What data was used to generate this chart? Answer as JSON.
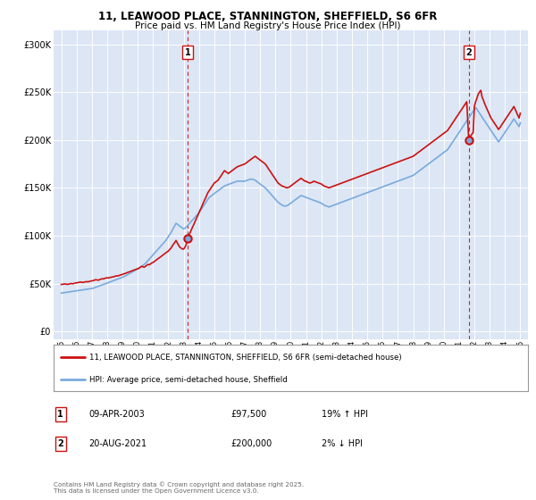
{
  "title_line1": "11, LEAWOOD PLACE, STANNINGTON, SHEFFIELD, S6 6FR",
  "title_line2": "Price paid vs. HM Land Registry's House Price Index (HPI)",
  "plot_bg_color": "#dce6f5",
  "red_color": "#cc1111",
  "blue_color": "#7aaadd",
  "dashed_color": "#cc1111",
  "marker1_x": 2003.27,
  "marker1_y": 97500,
  "marker2_x": 2021.63,
  "marker2_y": 200000,
  "annotation1": [
    "1",
    "09-APR-2003",
    "£97,500",
    "19% ↑ HPI"
  ],
  "annotation2": [
    "2",
    "20-AUG-2021",
    "£200,000",
    "2% ↓ HPI"
  ],
  "legend_line1": "11, LEAWOOD PLACE, STANNINGTON, SHEFFIELD, S6 6FR (semi-detached house)",
  "legend_line2": "HPI: Average price, semi-detached house, Sheffield",
  "footer": "Contains HM Land Registry data © Crown copyright and database right 2025.\nThis data is licensed under the Open Government Licence v3.0.",
  "yticks": [
    0,
    50000,
    100000,
    150000,
    200000,
    250000,
    300000
  ],
  "ytick_labels": [
    "£0",
    "£50K",
    "£100K",
    "£150K",
    "£200K",
    "£250K",
    "£300K"
  ],
  "xmin": 1994.5,
  "xmax": 2025.5,
  "ymin": -8000,
  "ymax": 315000,
  "red_data_x": [
    1995.0,
    1995.08,
    1995.17,
    1995.25,
    1995.33,
    1995.42,
    1995.5,
    1995.58,
    1995.67,
    1995.75,
    1995.83,
    1995.92,
    1996.0,
    1996.08,
    1996.17,
    1996.25,
    1996.33,
    1996.42,
    1996.5,
    1996.58,
    1996.67,
    1996.75,
    1996.83,
    1996.92,
    1997.0,
    1997.08,
    1997.17,
    1997.25,
    1997.33,
    1997.42,
    1997.5,
    1997.58,
    1997.67,
    1997.75,
    1997.83,
    1997.92,
    1998.0,
    1998.08,
    1998.17,
    1998.25,
    1998.33,
    1998.42,
    1998.5,
    1998.58,
    1998.67,
    1998.75,
    1998.83,
    1998.92,
    1999.0,
    1999.08,
    1999.17,
    1999.25,
    1999.33,
    1999.42,
    1999.5,
    1999.58,
    1999.67,
    1999.75,
    1999.83,
    1999.92,
    2000.0,
    2000.08,
    2000.17,
    2000.25,
    2000.33,
    2000.42,
    2000.5,
    2000.58,
    2000.67,
    2000.75,
    2000.83,
    2000.92,
    2001.0,
    2001.08,
    2001.17,
    2001.25,
    2001.33,
    2001.42,
    2001.5,
    2001.58,
    2001.67,
    2001.75,
    2001.83,
    2001.92,
    2002.0,
    2002.08,
    2002.17,
    2002.25,
    2002.33,
    2002.42,
    2002.5,
    2002.58,
    2002.67,
    2002.75,
    2002.83,
    2002.92,
    2003.0,
    2003.08,
    2003.17,
    2003.27,
    2003.33,
    2003.42,
    2003.5,
    2003.58,
    2003.67,
    2003.75,
    2003.83,
    2003.92,
    2004.0,
    2004.08,
    2004.17,
    2004.25,
    2004.33,
    2004.42,
    2004.5,
    2004.58,
    2004.67,
    2004.75,
    2004.83,
    2004.92,
    2005.0,
    2005.08,
    2005.17,
    2005.25,
    2005.33,
    2005.42,
    2005.5,
    2005.58,
    2005.67,
    2005.75,
    2005.83,
    2005.92,
    2006.0,
    2006.08,
    2006.17,
    2006.25,
    2006.33,
    2006.42,
    2006.5,
    2006.58,
    2006.67,
    2006.75,
    2006.83,
    2006.92,
    2007.0,
    2007.08,
    2007.17,
    2007.25,
    2007.33,
    2007.42,
    2007.5,
    2007.58,
    2007.67,
    2007.75,
    2007.83,
    2007.92,
    2008.0,
    2008.08,
    2008.17,
    2008.25,
    2008.33,
    2008.42,
    2008.5,
    2008.58,
    2008.67,
    2008.75,
    2008.83,
    2008.92,
    2009.0,
    2009.08,
    2009.17,
    2009.25,
    2009.33,
    2009.42,
    2009.5,
    2009.58,
    2009.67,
    2009.75,
    2009.83,
    2009.92,
    2010.0,
    2010.08,
    2010.17,
    2010.25,
    2010.33,
    2010.42,
    2010.5,
    2010.58,
    2010.67,
    2010.75,
    2010.83,
    2010.92,
    2011.0,
    2011.08,
    2011.17,
    2011.25,
    2011.33,
    2011.42,
    2011.5,
    2011.58,
    2011.67,
    2011.75,
    2011.83,
    2011.92,
    2012.0,
    2012.08,
    2012.17,
    2012.25,
    2012.33,
    2012.42,
    2012.5,
    2012.58,
    2012.67,
    2012.75,
    2012.83,
    2012.92,
    2013.0,
    2013.08,
    2013.17,
    2013.25,
    2013.33,
    2013.42,
    2013.5,
    2013.58,
    2013.67,
    2013.75,
    2013.83,
    2013.92,
    2014.0,
    2014.08,
    2014.17,
    2014.25,
    2014.33,
    2014.42,
    2014.5,
    2014.58,
    2014.67,
    2014.75,
    2014.83,
    2014.92,
    2015.0,
    2015.08,
    2015.17,
    2015.25,
    2015.33,
    2015.42,
    2015.5,
    2015.58,
    2015.67,
    2015.75,
    2015.83,
    2015.92,
    2016.0,
    2016.08,
    2016.17,
    2016.25,
    2016.33,
    2016.42,
    2016.5,
    2016.58,
    2016.67,
    2016.75,
    2016.83,
    2016.92,
    2017.0,
    2017.08,
    2017.17,
    2017.25,
    2017.33,
    2017.42,
    2017.5,
    2017.58,
    2017.67,
    2017.75,
    2017.83,
    2017.92,
    2018.0,
    2018.08,
    2018.17,
    2018.25,
    2018.33,
    2018.42,
    2018.5,
    2018.58,
    2018.67,
    2018.75,
    2018.83,
    2018.92,
    2019.0,
    2019.08,
    2019.17,
    2019.25,
    2019.33,
    2019.42,
    2019.5,
    2019.58,
    2019.67,
    2019.75,
    2019.83,
    2019.92,
    2020.0,
    2020.08,
    2020.17,
    2020.25,
    2020.33,
    2020.42,
    2020.5,
    2020.58,
    2020.67,
    2020.75,
    2020.83,
    2020.92,
    2021.0,
    2021.08,
    2021.17,
    2021.25,
    2021.33,
    2021.42,
    2021.5,
    2021.63,
    2021.67,
    2021.75,
    2021.83,
    2021.92,
    2022.0,
    2022.08,
    2022.17,
    2022.25,
    2022.33,
    2022.42,
    2022.5,
    2022.58,
    2022.67,
    2022.75,
    2022.83,
    2022.92,
    2023.0,
    2023.08,
    2023.17,
    2023.25,
    2023.33,
    2023.42,
    2023.5,
    2023.58,
    2023.67,
    2023.75,
    2023.83,
    2023.92,
    2024.0,
    2024.08,
    2024.17,
    2024.25,
    2024.33,
    2024.42,
    2024.5,
    2024.58,
    2024.67,
    2024.75,
    2024.83,
    2024.92,
    2025.0
  ],
  "red_data_y": [
    49000,
    49200,
    49400,
    49600,
    49300,
    49100,
    49500,
    49800,
    50000,
    49700,
    50200,
    50500,
    50800,
    51000,
    51200,
    51500,
    51300,
    51100,
    51500,
    51800,
    52000,
    51700,
    52200,
    52500,
    52800,
    53000,
    53500,
    54000,
    53800,
    53500,
    54000,
    54500,
    55000,
    54800,
    55300,
    55800,
    56000,
    55800,
    56200,
    56500,
    56800,
    57000,
    57500,
    58000,
    57800,
    58200,
    58700,
    59200,
    59500,
    60000,
    60500,
    61000,
    61500,
    62000,
    62500,
    63000,
    63500,
    64000,
    64500,
    65000,
    65500,
    66000,
    67000,
    68000,
    67500,
    67000,
    68000,
    69000,
    70000,
    69500,
    70500,
    71500,
    72000,
    73000,
    74000,
    75000,
    76000,
    77000,
    78000,
    79000,
    80000,
    81000,
    82000,
    83000,
    84000,
    85500,
    87000,
    89000,
    91000,
    93000,
    95000,
    92500,
    90000,
    88000,
    87000,
    86000,
    86000,
    88000,
    91000,
    97500,
    100000,
    103000,
    106000,
    109000,
    112000,
    115000,
    118000,
    121000,
    124000,
    127000,
    130000,
    133000,
    136000,
    139000,
    142000,
    145000,
    147000,
    149000,
    151000,
    153000,
    155000,
    156000,
    157000,
    158000,
    160000,
    162000,
    164000,
    166000,
    168000,
    167000,
    166000,
    165000,
    166000,
    167000,
    168000,
    169000,
    170000,
    171000,
    172000,
    172500,
    173000,
    173500,
    174000,
    174500,
    175000,
    176000,
    177000,
    178000,
    179000,
    180000,
    181000,
    182000,
    183000,
    182000,
    181000,
    180000,
    179000,
    178000,
    177000,
    176000,
    175000,
    173000,
    171000,
    169000,
    167000,
    165000,
    163000,
    161000,
    159000,
    157000,
    155000,
    154000,
    153000,
    152000,
    151500,
    151000,
    150500,
    150000,
    150500,
    151000,
    152000,
    153000,
    154000,
    155000,
    156000,
    157000,
    158000,
    159000,
    160000,
    159000,
    158000,
    157000,
    157000,
    156000,
    155500,
    155000,
    155500,
    156000,
    157000,
    156500,
    156000,
    155500,
    155000,
    154500,
    154000,
    153000,
    152000,
    151500,
    151000,
    150500,
    150000,
    150500,
    151000,
    151500,
    152000,
    152500,
    153000,
    153500,
    154000,
    154500,
    155000,
    155500,
    156000,
    156500,
    157000,
    157500,
    158000,
    158500,
    159000,
    159500,
    160000,
    160500,
    161000,
    161500,
    162000,
    162500,
    163000,
    163500,
    164000,
    164500,
    165000,
    165500,
    166000,
    166500,
    167000,
    167500,
    168000,
    168500,
    169000,
    169500,
    170000,
    170500,
    171000,
    171500,
    172000,
    172500,
    173000,
    173500,
    174000,
    174500,
    175000,
    175500,
    176000,
    176500,
    177000,
    177500,
    178000,
    178500,
    179000,
    179500,
    180000,
    180500,
    181000,
    181500,
    182000,
    182500,
    183000,
    184000,
    185000,
    186000,
    187000,
    188000,
    189000,
    190000,
    191000,
    192000,
    193000,
    194000,
    195000,
    196000,
    197000,
    198000,
    199000,
    200000,
    201000,
    202000,
    203000,
    204000,
    205000,
    206000,
    207000,
    208000,
    209000,
    210000,
    212000,
    214000,
    216000,
    218000,
    220000,
    222000,
    224000,
    226000,
    228000,
    230000,
    232000,
    234000,
    236000,
    238000,
    240000,
    200000,
    202000,
    204000,
    206000,
    208000,
    235000,
    240000,
    244000,
    248000,
    250000,
    252000,
    245000,
    242000,
    238000,
    235000,
    232000,
    229000,
    226000,
    223000,
    221000,
    219000,
    217000,
    215000,
    213000,
    211000,
    213000,
    215000,
    217000,
    219000,
    221000,
    223000,
    225000,
    227000,
    229000,
    231000,
    233000,
    235000,
    232000,
    229000,
    226000,
    223000,
    228000
  ],
  "blue_data_x": [
    1995.0,
    1995.08,
    1995.17,
    1995.25,
    1995.33,
    1995.42,
    1995.5,
    1995.58,
    1995.67,
    1995.75,
    1995.83,
    1995.92,
    1996.0,
    1996.08,
    1996.17,
    1996.25,
    1996.33,
    1996.42,
    1996.5,
    1996.58,
    1996.67,
    1996.75,
    1996.83,
    1996.92,
    1997.0,
    1997.08,
    1997.17,
    1997.25,
    1997.33,
    1997.42,
    1997.5,
    1997.58,
    1997.67,
    1997.75,
    1997.83,
    1997.92,
    1998.0,
    1998.08,
    1998.17,
    1998.25,
    1998.33,
    1998.42,
    1998.5,
    1998.58,
    1998.67,
    1998.75,
    1998.83,
    1998.92,
    1999.0,
    1999.08,
    1999.17,
    1999.25,
    1999.33,
    1999.42,
    1999.5,
    1999.58,
    1999.67,
    1999.75,
    1999.83,
    1999.92,
    2000.0,
    2000.08,
    2000.17,
    2000.25,
    2000.33,
    2000.42,
    2000.5,
    2000.58,
    2000.67,
    2000.75,
    2000.83,
    2000.92,
    2001.0,
    2001.08,
    2001.17,
    2001.25,
    2001.33,
    2001.42,
    2001.5,
    2001.58,
    2001.67,
    2001.75,
    2001.83,
    2001.92,
    2002.0,
    2002.08,
    2002.17,
    2002.25,
    2002.33,
    2002.42,
    2002.5,
    2002.58,
    2002.67,
    2002.75,
    2002.83,
    2002.92,
    2003.0,
    2003.08,
    2003.17,
    2003.25,
    2003.33,
    2003.42,
    2003.5,
    2003.58,
    2003.67,
    2003.75,
    2003.83,
    2003.92,
    2004.0,
    2004.08,
    2004.17,
    2004.25,
    2004.33,
    2004.42,
    2004.5,
    2004.58,
    2004.67,
    2004.75,
    2004.83,
    2004.92,
    2005.0,
    2005.08,
    2005.17,
    2005.25,
    2005.33,
    2005.42,
    2005.5,
    2005.58,
    2005.67,
    2005.75,
    2005.83,
    2005.92,
    2006.0,
    2006.08,
    2006.17,
    2006.25,
    2006.33,
    2006.42,
    2006.5,
    2006.58,
    2006.67,
    2006.75,
    2006.83,
    2006.92,
    2007.0,
    2007.08,
    2007.17,
    2007.25,
    2007.33,
    2007.42,
    2007.5,
    2007.58,
    2007.67,
    2007.75,
    2007.83,
    2007.92,
    2008.0,
    2008.08,
    2008.17,
    2008.25,
    2008.33,
    2008.42,
    2008.5,
    2008.58,
    2008.67,
    2008.75,
    2008.83,
    2008.92,
    2009.0,
    2009.08,
    2009.17,
    2009.25,
    2009.33,
    2009.42,
    2009.5,
    2009.58,
    2009.67,
    2009.75,
    2009.83,
    2009.92,
    2010.0,
    2010.08,
    2010.17,
    2010.25,
    2010.33,
    2010.42,
    2010.5,
    2010.58,
    2010.67,
    2010.75,
    2010.83,
    2010.92,
    2011.0,
    2011.08,
    2011.17,
    2011.25,
    2011.33,
    2011.42,
    2011.5,
    2011.58,
    2011.67,
    2011.75,
    2011.83,
    2011.92,
    2012.0,
    2012.08,
    2012.17,
    2012.25,
    2012.33,
    2012.42,
    2012.5,
    2012.58,
    2012.67,
    2012.75,
    2012.83,
    2012.92,
    2013.0,
    2013.08,
    2013.17,
    2013.25,
    2013.33,
    2013.42,
    2013.5,
    2013.58,
    2013.67,
    2013.75,
    2013.83,
    2013.92,
    2014.0,
    2014.08,
    2014.17,
    2014.25,
    2014.33,
    2014.42,
    2014.5,
    2014.58,
    2014.67,
    2014.75,
    2014.83,
    2014.92,
    2015.0,
    2015.08,
    2015.17,
    2015.25,
    2015.33,
    2015.42,
    2015.5,
    2015.58,
    2015.67,
    2015.75,
    2015.83,
    2015.92,
    2016.0,
    2016.08,
    2016.17,
    2016.25,
    2016.33,
    2016.42,
    2016.5,
    2016.58,
    2016.67,
    2016.75,
    2016.83,
    2016.92,
    2017.0,
    2017.08,
    2017.17,
    2017.25,
    2017.33,
    2017.42,
    2017.5,
    2017.58,
    2017.67,
    2017.75,
    2017.83,
    2017.92,
    2018.0,
    2018.08,
    2018.17,
    2018.25,
    2018.33,
    2018.42,
    2018.5,
    2018.58,
    2018.67,
    2018.75,
    2018.83,
    2018.92,
    2019.0,
    2019.08,
    2019.17,
    2019.25,
    2019.33,
    2019.42,
    2019.5,
    2019.58,
    2019.67,
    2019.75,
    2019.83,
    2019.92,
    2020.0,
    2020.08,
    2020.17,
    2020.25,
    2020.33,
    2020.42,
    2020.5,
    2020.58,
    2020.67,
    2020.75,
    2020.83,
    2020.92,
    2021.0,
    2021.08,
    2021.17,
    2021.25,
    2021.33,
    2021.42,
    2021.5,
    2021.58,
    2021.67,
    2021.75,
    2021.83,
    2021.92,
    2022.0,
    2022.08,
    2022.17,
    2022.25,
    2022.33,
    2022.42,
    2022.5,
    2022.58,
    2022.67,
    2022.75,
    2022.83,
    2022.92,
    2023.0,
    2023.08,
    2023.17,
    2023.25,
    2023.33,
    2023.42,
    2023.5,
    2023.58,
    2023.67,
    2023.75,
    2023.83,
    2023.92,
    2024.0,
    2024.08,
    2024.17,
    2024.25,
    2024.33,
    2024.42,
    2024.5,
    2024.58,
    2024.67,
    2024.75,
    2024.83,
    2024.92,
    2025.0
  ],
  "blue_data_y": [
    40000,
    40200,
    40400,
    40600,
    40800,
    41000,
    41200,
    41400,
    41600,
    41800,
    42000,
    42200,
    42400,
    42600,
    42800,
    43000,
    43200,
    43400,
    43600,
    43800,
    44000,
    44200,
    44400,
    44600,
    44800,
    45000,
    45500,
    46000,
    46500,
    47000,
    47500,
    48000,
    48500,
    49000,
    49500,
    50000,
    50500,
    51000,
    51500,
    52000,
    52500,
    53000,
    53500,
    54000,
    54500,
    55000,
    55500,
    56000,
    56500,
    57000,
    57800,
    58500,
    59200,
    60000,
    60800,
    61500,
    62200,
    63000,
    63800,
    64500,
    65200,
    66000,
    67000,
    68000,
    69000,
    70000,
    71000,
    72500,
    74000,
    75500,
    77000,
    78500,
    80000,
    81500,
    83000,
    84500,
    86000,
    87500,
    89000,
    90500,
    92000,
    93500,
    95000,
    97000,
    99000,
    101000,
    103000,
    105500,
    108000,
    110500,
    113000,
    112000,
    111000,
    110000,
    109000,
    108000,
    107000,
    108000,
    109000,
    110500,
    112000,
    113500,
    115000,
    116500,
    118000,
    119500,
    121000,
    122500,
    124000,
    126000,
    128000,
    130000,
    132000,
    134000,
    136000,
    138000,
    140000,
    141000,
    142000,
    143000,
    144000,
    145000,
    146000,
    147000,
    148000,
    149000,
    150000,
    151000,
    152000,
    152500,
    153000,
    153500,
    154000,
    154500,
    155000,
    155500,
    156000,
    156500,
    157000,
    157000,
    157000,
    157000,
    157000,
    157000,
    157000,
    157500,
    158000,
    158500,
    159000,
    159000,
    159000,
    158500,
    158000,
    157000,
    156000,
    155000,
    154000,
    153000,
    152000,
    151000,
    150000,
    148500,
    147000,
    145500,
    144000,
    142500,
    141000,
    139500,
    138000,
    136500,
    135000,
    134000,
    133000,
    132000,
    131500,
    131000,
    131000,
    131500,
    132000,
    133000,
    134000,
    135000,
    136000,
    137000,
    138000,
    139000,
    140000,
    141000,
    142000,
    141500,
    141000,
    140500,
    140000,
    139500,
    139000,
    138500,
    138000,
    137500,
    137000,
    136500,
    136000,
    135500,
    135000,
    134500,
    134000,
    133000,
    132000,
    131500,
    131000,
    130500,
    130000,
    130500,
    131000,
    131500,
    132000,
    132500,
    133000,
    133500,
    134000,
    134500,
    135000,
    135500,
    136000,
    136500,
    137000,
    137500,
    138000,
    138500,
    139000,
    139500,
    140000,
    140500,
    141000,
    141500,
    142000,
    142500,
    143000,
    143500,
    144000,
    144500,
    145000,
    145500,
    146000,
    146500,
    147000,
    147500,
    148000,
    148500,
    149000,
    149500,
    150000,
    150500,
    151000,
    151500,
    152000,
    152500,
    153000,
    153500,
    154000,
    154500,
    155000,
    155500,
    156000,
    156500,
    157000,
    157500,
    158000,
    158500,
    159000,
    159500,
    160000,
    160500,
    161000,
    161500,
    162000,
    162500,
    163000,
    164000,
    165000,
    166000,
    167000,
    168000,
    169000,
    170000,
    171000,
    172000,
    173000,
    174000,
    175000,
    176000,
    177000,
    178000,
    179000,
    180000,
    181000,
    182000,
    183000,
    184000,
    185000,
    186000,
    187000,
    188000,
    189000,
    190000,
    192000,
    194000,
    196000,
    198000,
    200000,
    202000,
    204000,
    206000,
    208000,
    210000,
    212000,
    214000,
    216000,
    218000,
    220000,
    222000,
    224000,
    226000,
    228000,
    230000,
    232000,
    234000,
    232000,
    230000,
    228000,
    226000,
    224000,
    222000,
    220000,
    218000,
    216000,
    214000,
    212000,
    210000,
    208000,
    206000,
    204000,
    202000,
    200000,
    198000,
    200000,
    202000,
    204000,
    206000,
    208000,
    210000,
    212000,
    214000,
    216000,
    218000,
    220000,
    222000,
    220000,
    218000,
    216000,
    214000,
    218000
  ]
}
